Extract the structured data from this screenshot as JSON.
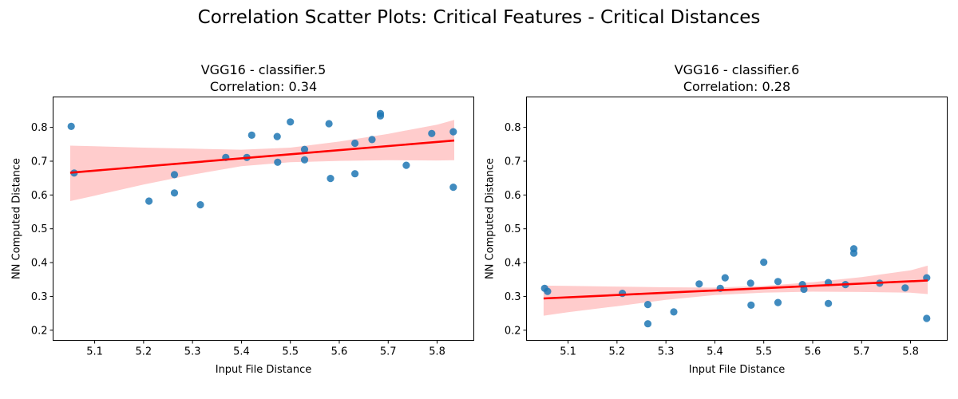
{
  "figure": {
    "suptitle": "Correlation Scatter Plots: Critical Features - Critical Distances"
  },
  "chart_data": [
    {
      "type": "scatter",
      "title": "VGG16 - classifier.5",
      "subtitle": "Correlation: 0.34",
      "xlabel": "Input File Distance",
      "ylabel": "NN Computed Distance",
      "xlim": [
        5.015,
        5.875
      ],
      "ylim": [
        0.17,
        0.89
      ],
      "xticks": [
        5.1,
        5.2,
        5.3,
        5.4,
        5.5,
        5.6,
        5.7,
        5.8
      ],
      "yticks": [
        0.2,
        0.3,
        0.4,
        0.5,
        0.6,
        0.7,
        0.8
      ],
      "grid": false,
      "point_color": "#1f77b4",
      "fit_color": "#ff0000",
      "band_color": "#ffcccc",
      "points": [
        {
          "x": 5.052,
          "y": 0.803
        },
        {
          "x": 5.058,
          "y": 0.665
        },
        {
          "x": 5.211,
          "y": 0.582
        },
        {
          "x": 5.263,
          "y": 0.66
        },
        {
          "x": 5.263,
          "y": 0.606
        },
        {
          "x": 5.316,
          "y": 0.571
        },
        {
          "x": 5.368,
          "y": 0.711
        },
        {
          "x": 5.411,
          "y": 0.711
        },
        {
          "x": 5.421,
          "y": 0.777
        },
        {
          "x": 5.473,
          "y": 0.773
        },
        {
          "x": 5.474,
          "y": 0.697
        },
        {
          "x": 5.5,
          "y": 0.816
        },
        {
          "x": 5.529,
          "y": 0.735
        },
        {
          "x": 5.529,
          "y": 0.704
        },
        {
          "x": 5.579,
          "y": 0.811
        },
        {
          "x": 5.582,
          "y": 0.649
        },
        {
          "x": 5.632,
          "y": 0.753
        },
        {
          "x": 5.632,
          "y": 0.663
        },
        {
          "x": 5.667,
          "y": 0.764
        },
        {
          "x": 5.684,
          "y": 0.841
        },
        {
          "x": 5.684,
          "y": 0.834
        },
        {
          "x": 5.737,
          "y": 0.688
        },
        {
          "x": 5.789,
          "y": 0.782
        },
        {
          "x": 5.833,
          "y": 0.787
        },
        {
          "x": 5.833,
          "y": 0.623
        }
      ],
      "fit": {
        "x": [
          5.05,
          5.835
        ],
        "y": [
          0.666,
          0.761
        ]
      },
      "band": {
        "x": [
          5.05,
          5.1,
          5.2,
          5.3,
          5.4,
          5.5,
          5.6,
          5.7,
          5.8,
          5.835
        ],
        "upper": [
          0.746,
          0.744,
          0.74,
          0.737,
          0.734,
          0.74,
          0.758,
          0.781,
          0.808,
          0.822
        ],
        "lower": [
          0.582,
          0.598,
          0.631,
          0.66,
          0.685,
          0.697,
          0.701,
          0.703,
          0.702,
          0.703
        ]
      }
    },
    {
      "type": "scatter",
      "title": "VGG16 - classifier.6",
      "subtitle": "Correlation: 0.28",
      "xlabel": "Input File Distance",
      "ylabel": "NN Computed Distance",
      "xlim": [
        5.015,
        5.875
      ],
      "ylim": [
        0.17,
        0.89
      ],
      "xticks": [
        5.1,
        5.2,
        5.3,
        5.4,
        5.5,
        5.6,
        5.7,
        5.8
      ],
      "yticks": [
        0.2,
        0.3,
        0.4,
        0.5,
        0.6,
        0.7,
        0.8
      ],
      "grid": false,
      "point_color": "#1f77b4",
      "fit_color": "#ff0000",
      "band_color": "#ffcccc",
      "points": [
        {
          "x": 5.052,
          "y": 0.324
        },
        {
          "x": 5.058,
          "y": 0.315
        },
        {
          "x": 5.211,
          "y": 0.309
        },
        {
          "x": 5.263,
          "y": 0.276
        },
        {
          "x": 5.263,
          "y": 0.219
        },
        {
          "x": 5.316,
          "y": 0.254
        },
        {
          "x": 5.368,
          "y": 0.337
        },
        {
          "x": 5.411,
          "y": 0.324
        },
        {
          "x": 5.421,
          "y": 0.355
        },
        {
          "x": 5.473,
          "y": 0.339
        },
        {
          "x": 5.474,
          "y": 0.274
        },
        {
          "x": 5.5,
          "y": 0.401
        },
        {
          "x": 5.529,
          "y": 0.344
        },
        {
          "x": 5.529,
          "y": 0.282
        },
        {
          "x": 5.579,
          "y": 0.335
        },
        {
          "x": 5.582,
          "y": 0.321
        },
        {
          "x": 5.632,
          "y": 0.341
        },
        {
          "x": 5.632,
          "y": 0.279
        },
        {
          "x": 5.667,
          "y": 0.335
        },
        {
          "x": 5.684,
          "y": 0.441
        },
        {
          "x": 5.684,
          "y": 0.428
        },
        {
          "x": 5.737,
          "y": 0.339
        },
        {
          "x": 5.789,
          "y": 0.325
        },
        {
          "x": 5.833,
          "y": 0.355
        },
        {
          "x": 5.833,
          "y": 0.235
        }
      ],
      "fit": {
        "x": [
          5.05,
          5.835
        ],
        "y": [
          0.294,
          0.347
        ]
      },
      "band": {
        "x": [
          5.05,
          5.1,
          5.2,
          5.3,
          5.4,
          5.5,
          5.6,
          5.7,
          5.8,
          5.835
        ],
        "upper": [
          0.332,
          0.331,
          0.329,
          0.327,
          0.326,
          0.331,
          0.342,
          0.357,
          0.377,
          0.391
        ],
        "lower": [
          0.243,
          0.253,
          0.271,
          0.29,
          0.304,
          0.311,
          0.314,
          0.313,
          0.311,
          0.307
        ]
      }
    }
  ]
}
